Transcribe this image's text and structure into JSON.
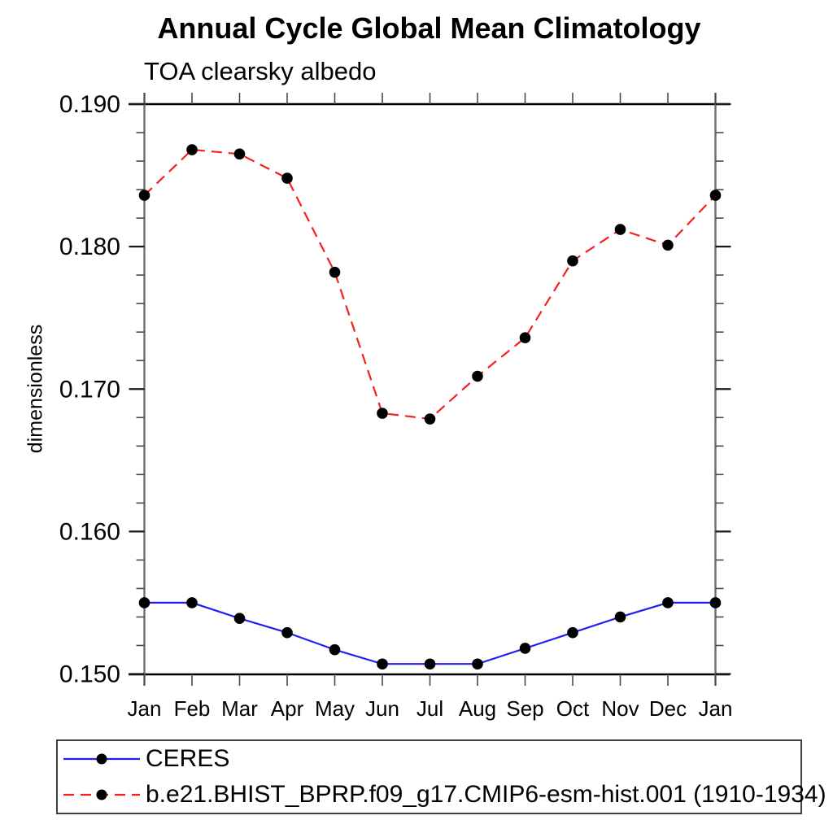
{
  "chart_data": {
    "type": "line",
    "title": "Annual Cycle Global Mean Climatology",
    "subtitle": "TOA clearsky albedo",
    "ylabel": "dimensionless",
    "xlabel": "",
    "categories": [
      "Jan",
      "Feb",
      "Mar",
      "Apr",
      "May",
      "Jun",
      "Jul",
      "Aug",
      "Sep",
      "Oct",
      "Nov",
      "Dec",
      "Jan"
    ],
    "ylim": [
      0.15,
      0.19
    ],
    "ytick_labels": [
      "0.150",
      "0.160",
      "0.170",
      "0.180",
      "0.190"
    ],
    "ytick_values": [
      0.15,
      0.16,
      0.17,
      0.18,
      0.19
    ],
    "ytick_minor_step": 0.002,
    "grid": false,
    "legend_position": "bottom",
    "marker": "filled-circle",
    "marker_color": "#000000",
    "series": [
      {
        "name": "CERES",
        "color": "#2222ee",
        "line_style": "solid",
        "values": [
          0.155,
          0.155,
          0.1539,
          0.1529,
          0.1517,
          0.1507,
          0.1507,
          0.1507,
          0.1518,
          0.1529,
          0.154,
          0.155,
          0.155
        ]
      },
      {
        "name": "b.e21.BHIST_BPRP.f09_g17.CMIP6-esm-hist.001 (1910-1934)",
        "color": "#f52020",
        "line_style": "dashed",
        "values": [
          0.1836,
          0.1868,
          0.1865,
          0.1848,
          0.1782,
          0.1683,
          0.1679,
          0.1709,
          0.1736,
          0.179,
          0.1812,
          0.1801,
          0.1836
        ]
      }
    ]
  }
}
